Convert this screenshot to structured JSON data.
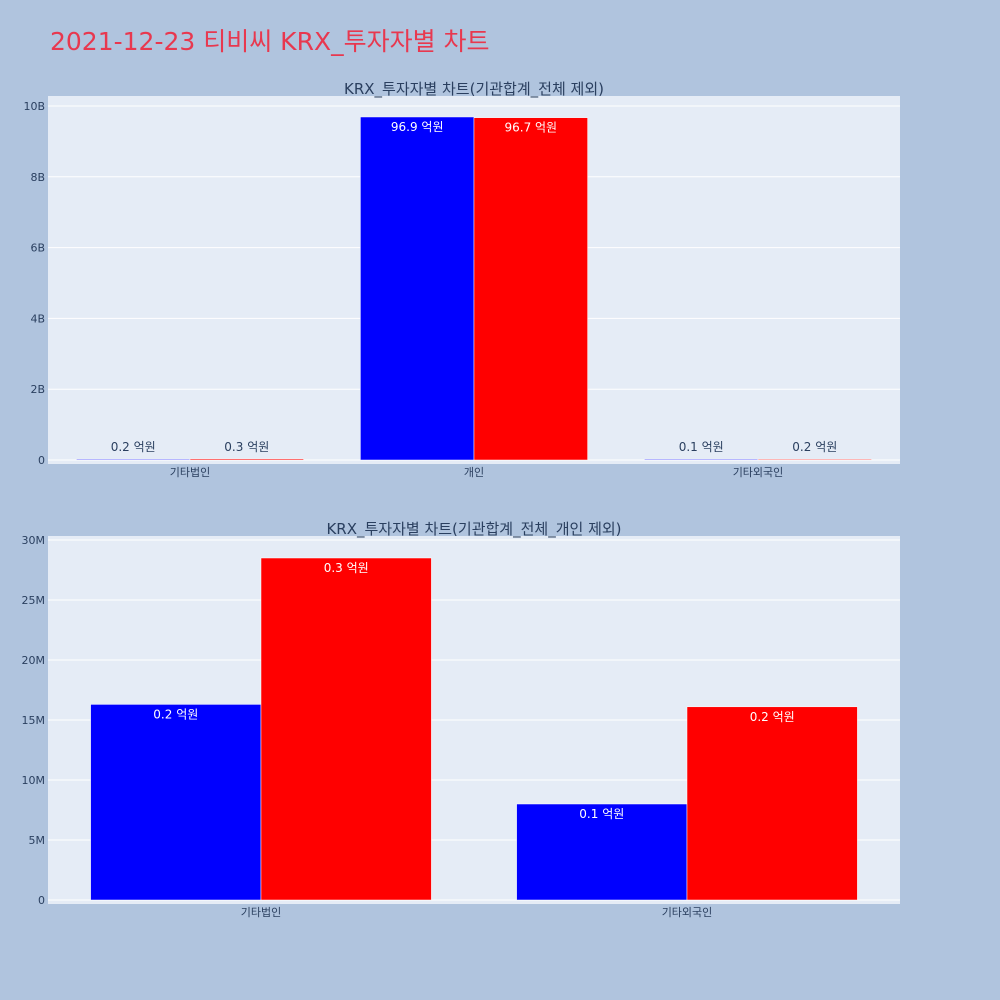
{
  "page": {
    "title": "2021-12-23 티비씨 KRX_투자자별 차트"
  },
  "colors": {
    "background": "#b0c4de",
    "plot": "#e5ecf6",
    "title": "#e8384f",
    "series_a": "#0000ff",
    "series_b": "#ff0000"
  },
  "chart_data": [
    {
      "type": "bar",
      "title": "KRX_투자자별 차트(기관합계_전체 제외)",
      "categories": [
        "기타법인",
        "개인",
        "기타외국인"
      ],
      "series": [
        {
          "color": "#0000ff",
          "values": [
            20000000,
            9690000000,
            10000000
          ],
          "labels": [
            "0.2 억원",
            "96.9 억원",
            "0.1 억원"
          ]
        },
        {
          "color": "#ff0000",
          "values": [
            30000000,
            9670000000,
            20000000
          ],
          "labels": [
            "0.3 억원",
            "96.7 억원",
            "0.2 억원"
          ]
        }
      ],
      "ylim": [
        0,
        10000000000
      ],
      "yticks": [
        0,
        2000000000,
        4000000000,
        6000000000,
        8000000000,
        10000000000
      ],
      "ytick_labels": [
        "0",
        "2B",
        "4B",
        "6B",
        "8B",
        "10B"
      ],
      "grid": true
    },
    {
      "type": "bar",
      "title": "KRX_투자자별 차트(기관합계_전체_개인 제외)",
      "categories": [
        "기타법인",
        "기타외국인"
      ],
      "series": [
        {
          "color": "#0000ff",
          "values": [
            16300000,
            8000000
          ],
          "labels": [
            "0.2 억원",
            "0.1 억원"
          ]
        },
        {
          "color": "#ff0000",
          "values": [
            28500000,
            16100000
          ],
          "labels": [
            "0.3 억원",
            "0.2 억원"
          ]
        }
      ],
      "ylim": [
        0,
        30000000
      ],
      "yticks": [
        0,
        5000000,
        10000000,
        15000000,
        20000000,
        25000000,
        30000000
      ],
      "ytick_labels": [
        "0",
        "5M",
        "10M",
        "15M",
        "20M",
        "25M",
        "30M"
      ],
      "grid": true
    }
  ]
}
